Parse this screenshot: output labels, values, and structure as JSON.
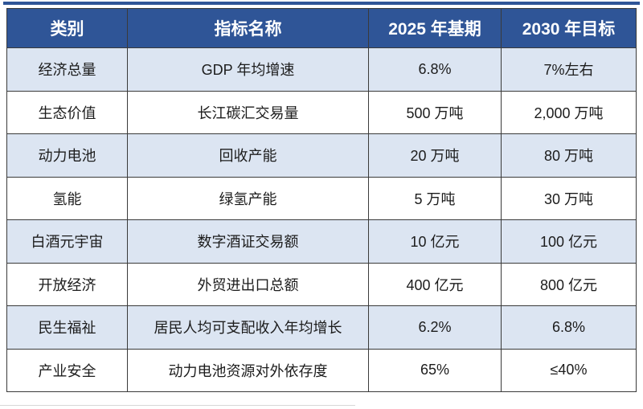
{
  "colors": {
    "header_bg": "#2F5597",
    "header_text": "#FFFFFF",
    "row_alt_bg": "#DCE5F2",
    "row_bg": "#FFFFFF",
    "grid_border": "#3A3A3A",
    "top_rule": "#2F5597",
    "body_text": "#1C1C1C"
  },
  "chart_data": {
    "type": "table",
    "columns": [
      "类别",
      "指标名称",
      "2025 年基期",
      "2030 年目标"
    ],
    "rows": [
      [
        "经济总量",
        "GDP 年均增速",
        "6.8%",
        "7%左右"
      ],
      [
        "生态价值",
        "长江碳汇交易量",
        "500 万吨",
        "2,000 万吨"
      ],
      [
        "动力电池",
        "回收产能",
        "20 万吨",
        "80 万吨"
      ],
      [
        "氢能",
        "绿氢产能",
        "5 万吨",
        "30 万吨"
      ],
      [
        "白酒元宇宙",
        "数字酒证交易额",
        "10 亿元",
        "100 亿元"
      ],
      [
        "开放经济",
        "外贸进出口总额",
        "400 亿元",
        "800 亿元"
      ],
      [
        "民生福祉",
        "居民人均可支配收入年均增长",
        "6.2%",
        "6.8%"
      ],
      [
        "产业安全",
        "动力电池资源对外依存度",
        "65%",
        "≤40%"
      ]
    ]
  }
}
